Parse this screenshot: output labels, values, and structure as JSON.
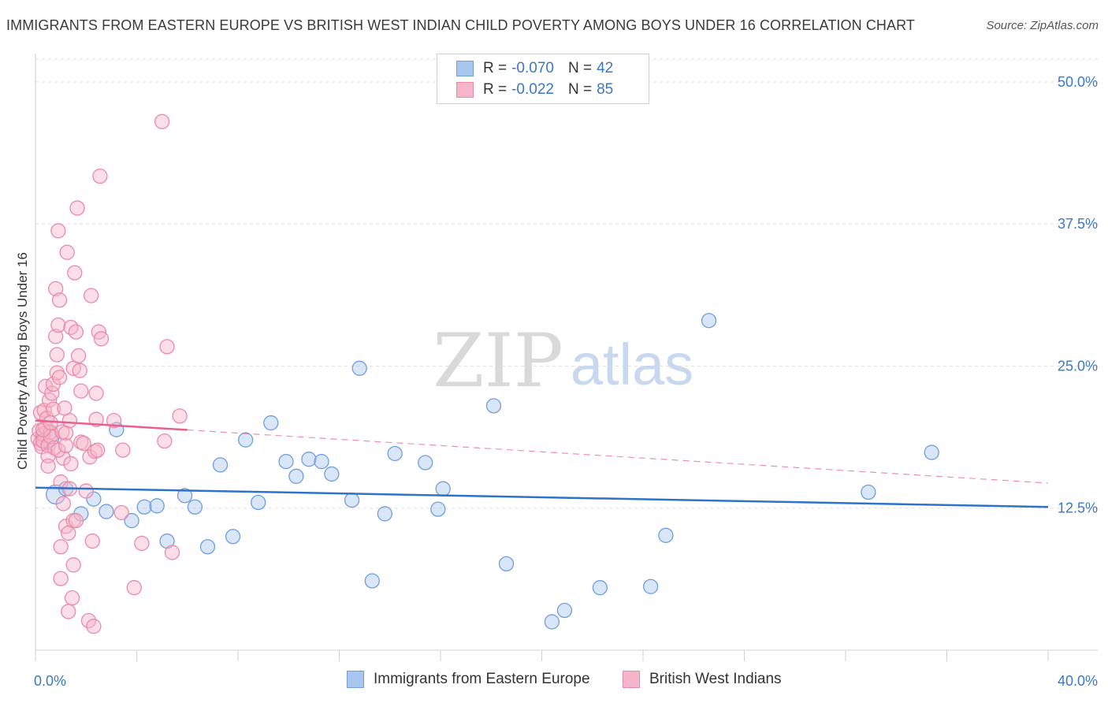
{
  "title": "IMMIGRANTS FROM EASTERN EUROPE VS BRITISH WEST INDIAN CHILD POVERTY AMONG BOYS UNDER 16 CORRELATION CHART",
  "source": "Source: ZipAtlas.com",
  "watermark": {
    "zip": "ZIP",
    "atlas": "atlas"
  },
  "legend": {
    "blue": {
      "r_label": "R = ",
      "r_value": "-0.070",
      "n_label": "N = ",
      "n_value": "42"
    },
    "pink": {
      "r_label": "R = ",
      "r_value": "-0.022",
      "n_label": "N = ",
      "n_value": "85"
    }
  },
  "bottom_legend": {
    "blue": "Immigrants from Eastern Europe",
    "pink": "British West Indians"
  },
  "colors": {
    "blue_fill": "#a9c7ee",
    "blue_stroke": "#6f9edc",
    "blue_line": "#2f72c9",
    "pink_fill": "#f6b5c9",
    "pink_stroke": "#ea8aa8",
    "pink_line": "#e8608c",
    "axis_text": "#3b78c3",
    "grid": "#dedede"
  },
  "chart_data": {
    "type": "scatter",
    "title": "IMMIGRANTS FROM EASTERN EUROPE VS BRITISH WEST INDIAN CHILD POVERTY AMONG BOYS UNDER 16 CORRELATION CHART",
    "xlabel": "",
    "ylabel": "Child Poverty Among Boys Under 16",
    "xlim": [
      0,
      40
    ],
    "ylim": [
      0,
      52
    ],
    "x_tick_labels": [
      "0.0%",
      "40.0%"
    ],
    "y_ticks": [
      12.5,
      25.0,
      37.5,
      50.0
    ],
    "y_tick_labels": [
      "12.5%",
      "25.0%",
      "37.5%",
      "50.0%"
    ],
    "series": [
      {
        "name": "Immigrants from Eastern Europe",
        "color": "blue",
        "r": -0.07,
        "n": 42,
        "trend": {
          "x": [
            0,
            40
          ],
          "y": [
            14.3,
            12.6
          ],
          "dashed_from": null
        },
        "points": [
          [
            0.5,
            18.8,
            14
          ],
          [
            0.8,
            13.7,
            12
          ],
          [
            1.2,
            14.2,
            9
          ],
          [
            1.8,
            12.0,
            9
          ],
          [
            2.3,
            13.3,
            9
          ],
          [
            2.8,
            12.2,
            9
          ],
          [
            3.2,
            19.4,
            9
          ],
          [
            3.8,
            11.4,
            9
          ],
          [
            4.3,
            12.6,
            9
          ],
          [
            4.8,
            12.7,
            9
          ],
          [
            5.2,
            9.6,
            9
          ],
          [
            5.9,
            13.6,
            9
          ],
          [
            6.3,
            12.6,
            9
          ],
          [
            6.8,
            9.1,
            9
          ],
          [
            7.3,
            16.3,
            9
          ],
          [
            7.8,
            10.0,
            9
          ],
          [
            8.3,
            18.5,
            9
          ],
          [
            8.8,
            13.0,
            9
          ],
          [
            9.3,
            20.0,
            9
          ],
          [
            9.9,
            16.6,
            9
          ],
          [
            10.3,
            15.3,
            9
          ],
          [
            10.8,
            16.8,
            9
          ],
          [
            11.3,
            16.6,
            9
          ],
          [
            11.7,
            15.5,
            9
          ],
          [
            12.5,
            13.2,
            9
          ],
          [
            12.8,
            24.8,
            9
          ],
          [
            13.3,
            6.1,
            9
          ],
          [
            13.8,
            12.0,
            9
          ],
          [
            14.2,
            17.3,
            9
          ],
          [
            15.4,
            16.5,
            9
          ],
          [
            15.9,
            12.4,
            9
          ],
          [
            16.1,
            14.2,
            9
          ],
          [
            18.1,
            21.5,
            9
          ],
          [
            18.6,
            7.6,
            9
          ],
          [
            20.4,
            2.5,
            9
          ],
          [
            20.9,
            3.5,
            9
          ],
          [
            22.3,
            5.5,
            9
          ],
          [
            24.3,
            5.6,
            9
          ],
          [
            24.9,
            10.1,
            9
          ],
          [
            26.6,
            29.0,
            9
          ],
          [
            32.9,
            13.9,
            9
          ],
          [
            35.4,
            17.4,
            9
          ]
        ]
      },
      {
        "name": "British West Indians",
        "color": "pink",
        "r": -0.022,
        "n": 85,
        "trend": {
          "x": [
            0,
            40
          ],
          "y": [
            20.2,
            14.7
          ],
          "dashed_from": 6.0
        },
        "points": [
          [
            0.1,
            18.6,
            9
          ],
          [
            0.15,
            19.3,
            9
          ],
          [
            0.2,
            18.2,
            9
          ],
          [
            0.2,
            20.9,
            9
          ],
          [
            0.25,
            17.9,
            9
          ],
          [
            0.3,
            19.0,
            9
          ],
          [
            0.3,
            18.4,
            9
          ],
          [
            0.35,
            21.1,
            9
          ],
          [
            0.4,
            23.2,
            9
          ],
          [
            0.4,
            19.6,
            9
          ],
          [
            0.45,
            20.4,
            9
          ],
          [
            0.5,
            18.0,
            9
          ],
          [
            0.5,
            17.1,
            9
          ],
          [
            0.55,
            22.0,
            9
          ],
          [
            0.6,
            19.2,
            9
          ],
          [
            0.6,
            18.8,
            9
          ],
          [
            0.65,
            22.6,
            9
          ],
          [
            0.7,
            21.2,
            9
          ],
          [
            0.7,
            23.4,
            9
          ],
          [
            0.75,
            17.8,
            9
          ],
          [
            0.8,
            31.8,
            9
          ],
          [
            0.8,
            27.6,
            9
          ],
          [
            0.85,
            24.4,
            9
          ],
          [
            0.85,
            26.0,
            9
          ],
          [
            0.9,
            28.6,
            9
          ],
          [
            0.9,
            36.9,
            9
          ],
          [
            0.95,
            24.0,
            9
          ],
          [
            0.95,
            30.8,
            9
          ],
          [
            1.0,
            14.8,
            9
          ],
          [
            1.0,
            9.1,
            9
          ],
          [
            1.0,
            6.3,
            9
          ],
          [
            1.05,
            19.2,
            9
          ],
          [
            1.1,
            16.9,
            9
          ],
          [
            1.1,
            12.9,
            9
          ],
          [
            1.15,
            21.3,
            9
          ],
          [
            1.2,
            19.1,
            9
          ],
          [
            1.2,
            10.9,
            9
          ],
          [
            1.25,
            35.0,
            9
          ],
          [
            1.3,
            10.3,
            9
          ],
          [
            1.3,
            3.4,
            9
          ],
          [
            1.35,
            20.2,
            9
          ],
          [
            1.35,
            14.2,
            9
          ],
          [
            1.4,
            28.4,
            9
          ],
          [
            1.4,
            16.4,
            9
          ],
          [
            1.45,
            4.6,
            9
          ],
          [
            1.5,
            24.8,
            9
          ],
          [
            1.5,
            11.4,
            9
          ],
          [
            1.5,
            7.5,
            9
          ],
          [
            1.55,
            33.2,
            9
          ],
          [
            1.6,
            28.0,
            9
          ],
          [
            1.6,
            11.4,
            9
          ],
          [
            1.65,
            38.9,
            9
          ],
          [
            1.7,
            25.9,
            9
          ],
          [
            1.75,
            24.6,
            9
          ],
          [
            1.8,
            22.8,
            9
          ],
          [
            1.8,
            18.3,
            9
          ],
          [
            1.9,
            18.2,
            9
          ],
          [
            2.0,
            14.0,
            9
          ],
          [
            2.1,
            2.6,
            9
          ],
          [
            2.15,
            17.0,
            9
          ],
          [
            2.2,
            31.2,
            9
          ],
          [
            2.25,
            9.6,
            9
          ],
          [
            2.3,
            2.1,
            9
          ],
          [
            2.35,
            17.5,
            9
          ],
          [
            2.4,
            22.6,
            9
          ],
          [
            2.4,
            20.3,
            9
          ],
          [
            2.45,
            17.6,
            9
          ],
          [
            2.5,
            28.0,
            9
          ],
          [
            2.55,
            41.7,
            9
          ],
          [
            2.6,
            27.4,
            9
          ],
          [
            3.1,
            20.2,
            9
          ],
          [
            3.4,
            12.1,
            9
          ],
          [
            3.45,
            17.6,
            9
          ],
          [
            3.9,
            5.5,
            9
          ],
          [
            4.2,
            9.4,
            9
          ],
          [
            5.0,
            46.5,
            9
          ],
          [
            5.1,
            18.4,
            9
          ],
          [
            5.2,
            26.7,
            9
          ],
          [
            5.4,
            8.6,
            9
          ],
          [
            5.7,
            20.6,
            9
          ],
          [
            0.3,
            19.4,
            9
          ],
          [
            0.6,
            20.0,
            9
          ],
          [
            0.9,
            17.6,
            9
          ],
          [
            1.2,
            18.0,
            9
          ],
          [
            0.5,
            16.2,
            9
          ]
        ]
      }
    ]
  }
}
